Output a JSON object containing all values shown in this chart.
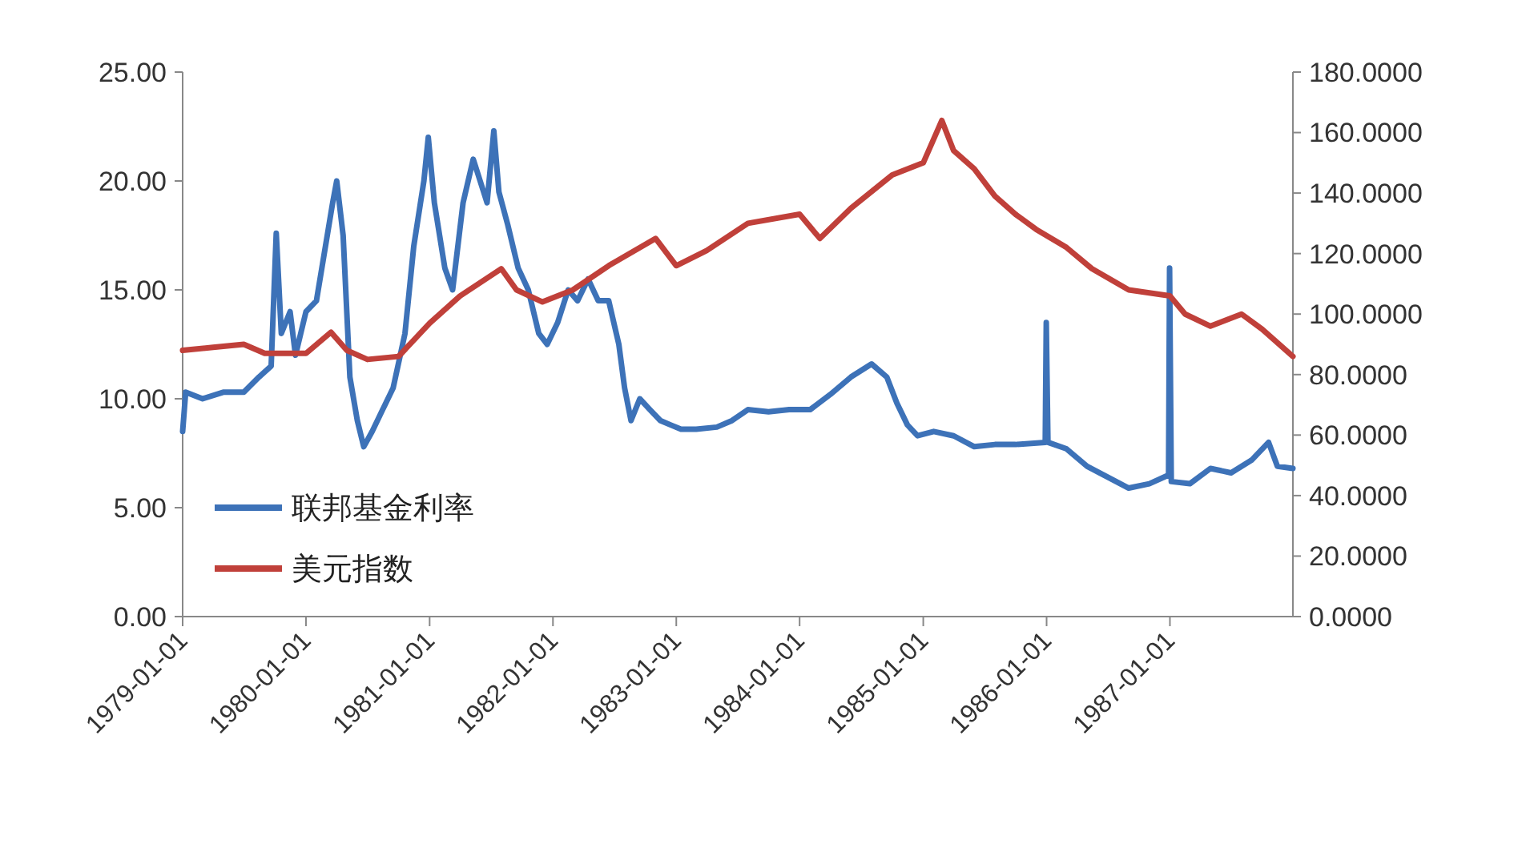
{
  "chart_data": {
    "type": "line",
    "xlim": [
      "1979-01-01",
      "1987-12-31"
    ],
    "xticks": [
      {
        "value": "1979-01-01",
        "label": "1979-01-01"
      },
      {
        "value": "1980-01-01",
        "label": "1980-01-01"
      },
      {
        "value": "1981-01-01",
        "label": "1981-01-01"
      },
      {
        "value": "1982-01-01",
        "label": "1982-01-01"
      },
      {
        "value": "1983-01-01",
        "label": "1983-01-01"
      },
      {
        "value": "1984-01-01",
        "label": "1984-01-01"
      },
      {
        "value": "1985-01-01",
        "label": "1985-01-01"
      },
      {
        "value": "1986-01-01",
        "label": "1986-01-01"
      },
      {
        "value": "1987-01-01",
        "label": "1987-01-01"
      }
    ],
    "ylim": [
      0,
      25
    ],
    "yticks": [
      {
        "value": 0,
        "label": "0.00"
      },
      {
        "value": 5,
        "label": "5.00"
      },
      {
        "value": 10,
        "label": "10.00"
      },
      {
        "value": 15,
        "label": "15.00"
      },
      {
        "value": 20,
        "label": "20.00"
      },
      {
        "value": 25,
        "label": "25.00"
      }
    ],
    "y2lim": [
      0,
      180
    ],
    "y2ticks": [
      {
        "value": 0,
        "label": "0.0000"
      },
      {
        "value": 20,
        "label": "20.0000"
      },
      {
        "value": 40,
        "label": "40.0000"
      },
      {
        "value": 60,
        "label": "60.0000"
      },
      {
        "value": 80,
        "label": "80.0000"
      },
      {
        "value": 100,
        "label": "100.0000"
      },
      {
        "value": 120,
        "label": "120.0000"
      },
      {
        "value": 140,
        "label": "140.0000"
      },
      {
        "value": 160,
        "label": "160.0000"
      },
      {
        "value": 180,
        "label": "180.0000"
      }
    ],
    "grid": false,
    "legend": "bottom left",
    "marker": "none",
    "line_style": "solid",
    "series": [
      {
        "name": "联邦基金利率",
        "color": "#3d72b8",
        "x": [
          "1979-01-01",
          "1979-01-10",
          "1979-03-01",
          "1979-05-01",
          "1979-07-01",
          "1979-08-15",
          "1979-09-20",
          "1979-10-05",
          "1979-10-20",
          "1979-11-15",
          "1979-12-01",
          "1980-01-01",
          "1980-02-01",
          "1980-03-20",
          "1980-04-01",
          "1980-04-20",
          "1980-05-10",
          "1980-06-01",
          "1980-06-20",
          "1980-07-15",
          "1980-08-15",
          "1980-09-15",
          "1980-10-20",
          "1980-11-15",
          "1980-12-15",
          "1980-12-28",
          "1981-01-15",
          "1981-02-15",
          "1981-03-10",
          "1981-04-10",
          "1981-05-10",
          "1981-06-20",
          "1981-07-10",
          "1981-07-25",
          "1981-08-20",
          "1981-09-20",
          "1981-10-20",
          "1981-11-20",
          "1981-12-15",
          "1982-01-15",
          "1982-02-15",
          "1982-03-15",
          "1982-04-15",
          "1982-05-15",
          "1982-06-15",
          "1982-07-15",
          "1982-08-01",
          "1982-08-20",
          "1982-09-15",
          "1982-10-15",
          "1982-11-15",
          "1982-12-15",
          "1983-01-15",
          "1983-03-01",
          "1983-05-01",
          "1983-06-15",
          "1983-08-01",
          "1983-10-01",
          "1983-12-01",
          "1984-02-01",
          "1984-04-01",
          "1984-06-01",
          "1984-08-01",
          "1984-09-15",
          "1984-10-15",
          "1984-11-15",
          "1984-12-15",
          "1985-02-01",
          "1985-04-01",
          "1985-06-01",
          "1985-08-01",
          "1985-10-01",
          "1985-12-28",
          "1985-12-31",
          "1986-01-05",
          "1986-03-01",
          "1986-05-01",
          "1986-07-01",
          "1986-09-01",
          "1986-11-01",
          "1986-12-28",
          "1986-12-31",
          "1987-01-05",
          "1987-03-01",
          "1987-05-01",
          "1987-07-01",
          "1987-09-01",
          "1987-10-20",
          "1987-11-15",
          "1987-12-31"
        ],
        "values": [
          8.5,
          10.3,
          10.0,
          10.3,
          10.3,
          11.0,
          11.5,
          17.6,
          13.0,
          14.0,
          12.0,
          14.0,
          14.5,
          19.0,
          20.0,
          17.5,
          11.0,
          9.0,
          7.8,
          8.5,
          9.5,
          10.5,
          13.0,
          17.0,
          20.0,
          22.0,
          19.0,
          16.0,
          15.0,
          19.0,
          21.0,
          19.0,
          22.3,
          19.5,
          18.0,
          16.0,
          15.0,
          13.0,
          12.5,
          13.5,
          15.0,
          14.5,
          15.5,
          14.5,
          14.5,
          12.5,
          10.5,
          9.0,
          10.0,
          9.5,
          9.0,
          8.8,
          8.6,
          8.6,
          8.7,
          9.0,
          9.5,
          9.4,
          9.5,
          9.5,
          10.2,
          11.0,
          11.6,
          11.0,
          9.8,
          8.8,
          8.3,
          8.5,
          8.3,
          7.8,
          7.9,
          7.9,
          8.0,
          13.5,
          8.0,
          7.7,
          6.9,
          6.4,
          5.9,
          6.1,
          6.5,
          16.0,
          6.2,
          6.1,
          6.8,
          6.6,
          7.2,
          8.0,
          6.9,
          6.8
        ]
      },
      {
        "name": "美元指数",
        "color": "#c0403a",
        "axis": "y2",
        "x": [
          "1979-01-01",
          "1979-04-01",
          "1979-07-01",
          "1979-09-01",
          "1980-01-01",
          "1980-03-15",
          "1980-05-01",
          "1980-07-01",
          "1980-10-01",
          "1981-01-01",
          "1981-04-01",
          "1981-08-01",
          "1981-09-15",
          "1981-12-01",
          "1982-03-01",
          "1982-06-15",
          "1982-11-01",
          "1983-01-01",
          "1983-04-01",
          "1983-08-01",
          "1984-01-01",
          "1984-03-01",
          "1984-06-01",
          "1984-10-01",
          "1985-01-01",
          "1985-02-25",
          "1985-04-01",
          "1985-06-01",
          "1985-08-01",
          "1985-10-01",
          "1985-12-01",
          "1986-03-01",
          "1986-05-15",
          "1986-09-01",
          "1987-01-01",
          "1987-02-15",
          "1987-05-01",
          "1987-08-01",
          "1987-10-01",
          "1987-12-31"
        ],
        "values": [
          88,
          89,
          90,
          87,
          87,
          94,
          88,
          85,
          86,
          97,
          106,
          115,
          108,
          104,
          108,
          116,
          125,
          116,
          121,
          130,
          133,
          125,
          135,
          146,
          150,
          164,
          154,
          148,
          139,
          133,
          128,
          122,
          115,
          108,
          106,
          100,
          96,
          100,
          95,
          86
        ]
      }
    ]
  }
}
